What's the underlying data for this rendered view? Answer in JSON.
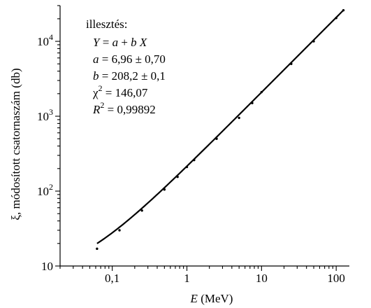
{
  "chart_data": {
    "type": "scatter",
    "title": "",
    "xlabel_var": "E",
    "xlabel_unit": " (MeV)",
    "ylabel": "ξ, módosított csatornaszám (db)",
    "x_scale": "log",
    "y_scale": "log",
    "xlim": [
      0.02,
      150
    ],
    "ylim": [
      10,
      30000
    ],
    "grid": false,
    "x_ticks": [
      {
        "value": 0.1,
        "label": "0,1"
      },
      {
        "value": 1,
        "label": "1"
      },
      {
        "value": 10,
        "label": "10"
      },
      {
        "value": 100,
        "label": "100"
      }
    ],
    "y_ticks": [
      {
        "value": 10,
        "base": "10",
        "exp": ""
      },
      {
        "value": 100,
        "base": "10",
        "exp": "2"
      },
      {
        "value": 1000,
        "base": "10",
        "exp": "3"
      },
      {
        "value": 10000,
        "base": "10",
        "exp": "4"
      }
    ],
    "series": [
      {
        "type": "scatter",
        "x": [
          0.0625,
          0.125,
          0.25,
          0.5,
          0.75,
          1.0,
          1.25,
          2.5,
          5.0,
          7.5,
          10.0,
          25.0,
          50.0,
          100.0,
          125.0
        ],
        "y": [
          17,
          30,
          55,
          105,
          155,
          210,
          260,
          500,
          950,
          1500,
          2100,
          5000,
          10000,
          20500,
          26000
        ]
      },
      {
        "type": "line",
        "fit": {
          "a": 6.96,
          "b": 208.2
        },
        "x_range": [
          0.0625,
          125
        ]
      }
    ],
    "annotation": {
      "header": "illesztés:",
      "lines": [
        {
          "parts": [
            {
              "t": "Y",
              "i": true
            },
            {
              "t": " = "
            },
            {
              "t": "a",
              "i": true
            },
            {
              "t": " + "
            },
            {
              "t": "b",
              "i": true
            },
            {
              "t": " "
            },
            {
              "t": "X",
              "i": true
            }
          ]
        },
        {
          "parts": [
            {
              "t": "a",
              "i": true
            },
            {
              "t": " = 6,96 ± 0,70"
            }
          ]
        },
        {
          "parts": [
            {
              "t": "b",
              "i": true
            },
            {
              "t": " = 208,2 ± 0,1"
            }
          ]
        },
        {
          "parts": [
            {
              "t": "χ"
            },
            {
              "t": "2",
              "sup": true
            },
            {
              "t": " = 146,07"
            }
          ]
        },
        {
          "parts": [
            {
              "t": "R",
              "i": true
            },
            {
              "t": "2",
              "sup": true
            },
            {
              "t": " = 0,99892"
            }
          ]
        }
      ]
    }
  }
}
